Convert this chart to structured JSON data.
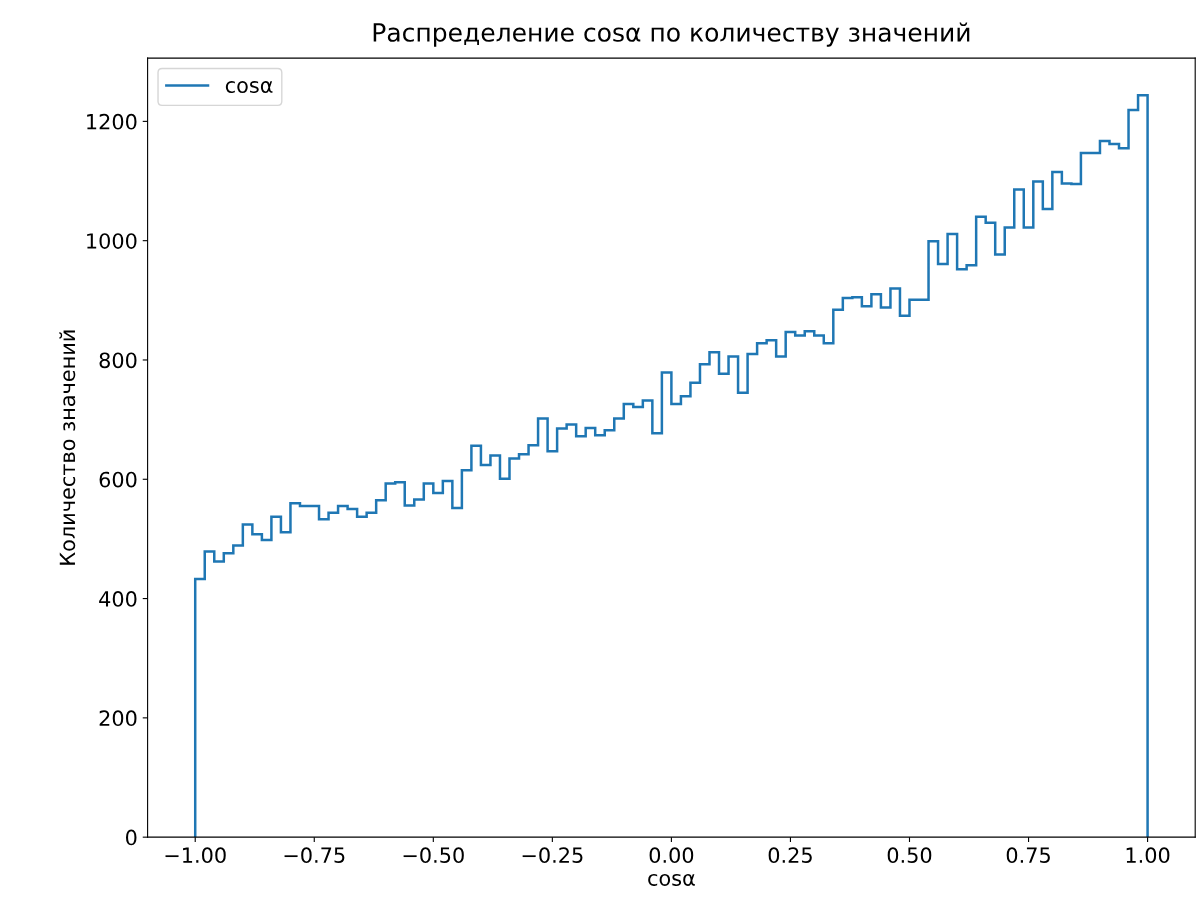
{
  "chart_data": {
    "type": "histogram",
    "title": "Распределение cosα по количеству значений",
    "xlabel": "cosα",
    "ylabel": "Количество значений",
    "bins": [
      -1.0,
      -0.98,
      -0.96,
      -0.94,
      -0.92,
      -0.9,
      -0.88,
      -0.86,
      -0.84,
      -0.82,
      -0.8,
      -0.78,
      -0.76,
      -0.74,
      -0.72,
      -0.7,
      -0.68,
      -0.66,
      -0.64,
      -0.62,
      -0.6,
      -0.58,
      -0.56,
      -0.54,
      -0.52,
      -0.5,
      -0.48,
      -0.46,
      -0.44,
      -0.42,
      -0.4,
      -0.38,
      -0.36,
      -0.34,
      -0.32,
      -0.3,
      -0.28,
      -0.26,
      -0.24,
      -0.22,
      -0.2,
      -0.18,
      -0.16,
      -0.14,
      -0.12,
      -0.1,
      -0.08,
      -0.06,
      -0.04,
      -0.02,
      0.0,
      0.02,
      0.04,
      0.06,
      0.08,
      0.1,
      0.12,
      0.14,
      0.16,
      0.18,
      0.2,
      0.22,
      0.24,
      0.26,
      0.28,
      0.3,
      0.32,
      0.34,
      0.36,
      0.38,
      0.4,
      0.42,
      0.44,
      0.46,
      0.48,
      0.5,
      0.52,
      0.54,
      0.56,
      0.58,
      0.6,
      0.62,
      0.64,
      0.66,
      0.68,
      0.7,
      0.72,
      0.74,
      0.76,
      0.78,
      0.8,
      0.82,
      0.84,
      0.86,
      0.88,
      0.9,
      0.92,
      0.94,
      0.96,
      0.98,
      1.0
    ],
    "series": [
      {
        "name": "cosα",
        "color": "#1f77b4",
        "values": [
          433,
          479,
          462,
          476,
          489,
          524,
          508,
          498,
          537,
          511,
          560,
          555,
          555,
          533,
          544,
          555,
          550,
          537,
          544,
          565,
          593,
          595,
          556,
          566,
          593,
          577,
          597,
          552,
          615,
          656,
          624,
          640,
          601,
          635,
          642,
          657,
          702,
          647,
          685,
          692,
          672,
          686,
          674,
          682,
          702,
          726,
          721,
          732,
          677,
          779,
          726,
          739,
          762,
          793,
          813,
          777,
          806,
          745,
          810,
          828,
          833,
          806,
          847,
          841,
          848,
          841,
          828,
          884,
          904,
          905,
          890,
          910,
          888,
          920,
          874,
          901,
          901,
          999,
          961,
          1011,
          952,
          959,
          1040,
          1030,
          977,
          1022,
          1086,
          1022,
          1099,
          1053,
          1115,
          1096,
          1095,
          1147,
          1147,
          1167,
          1162,
          1155,
          1219,
          1244
        ]
      }
    ],
    "xlim": [
      -1.1,
      1.1
    ],
    "ylim": [
      0,
      1306
    ],
    "xticks": [
      {
        "value": -1.0,
        "label": "−1.00"
      },
      {
        "value": -0.75,
        "label": "−0.75"
      },
      {
        "value": -0.5,
        "label": "−0.50"
      },
      {
        "value": -0.25,
        "label": "−0.25"
      },
      {
        "value": 0.0,
        "label": "0.00"
      },
      {
        "value": 0.25,
        "label": "0.25"
      },
      {
        "value": 0.5,
        "label": "0.50"
      },
      {
        "value": 0.75,
        "label": "0.75"
      },
      {
        "value": 1.0,
        "label": "1.00"
      }
    ],
    "yticks": [
      0,
      200,
      400,
      600,
      800,
      1000,
      1200
    ],
    "legend": "top left",
    "grid": false
  }
}
